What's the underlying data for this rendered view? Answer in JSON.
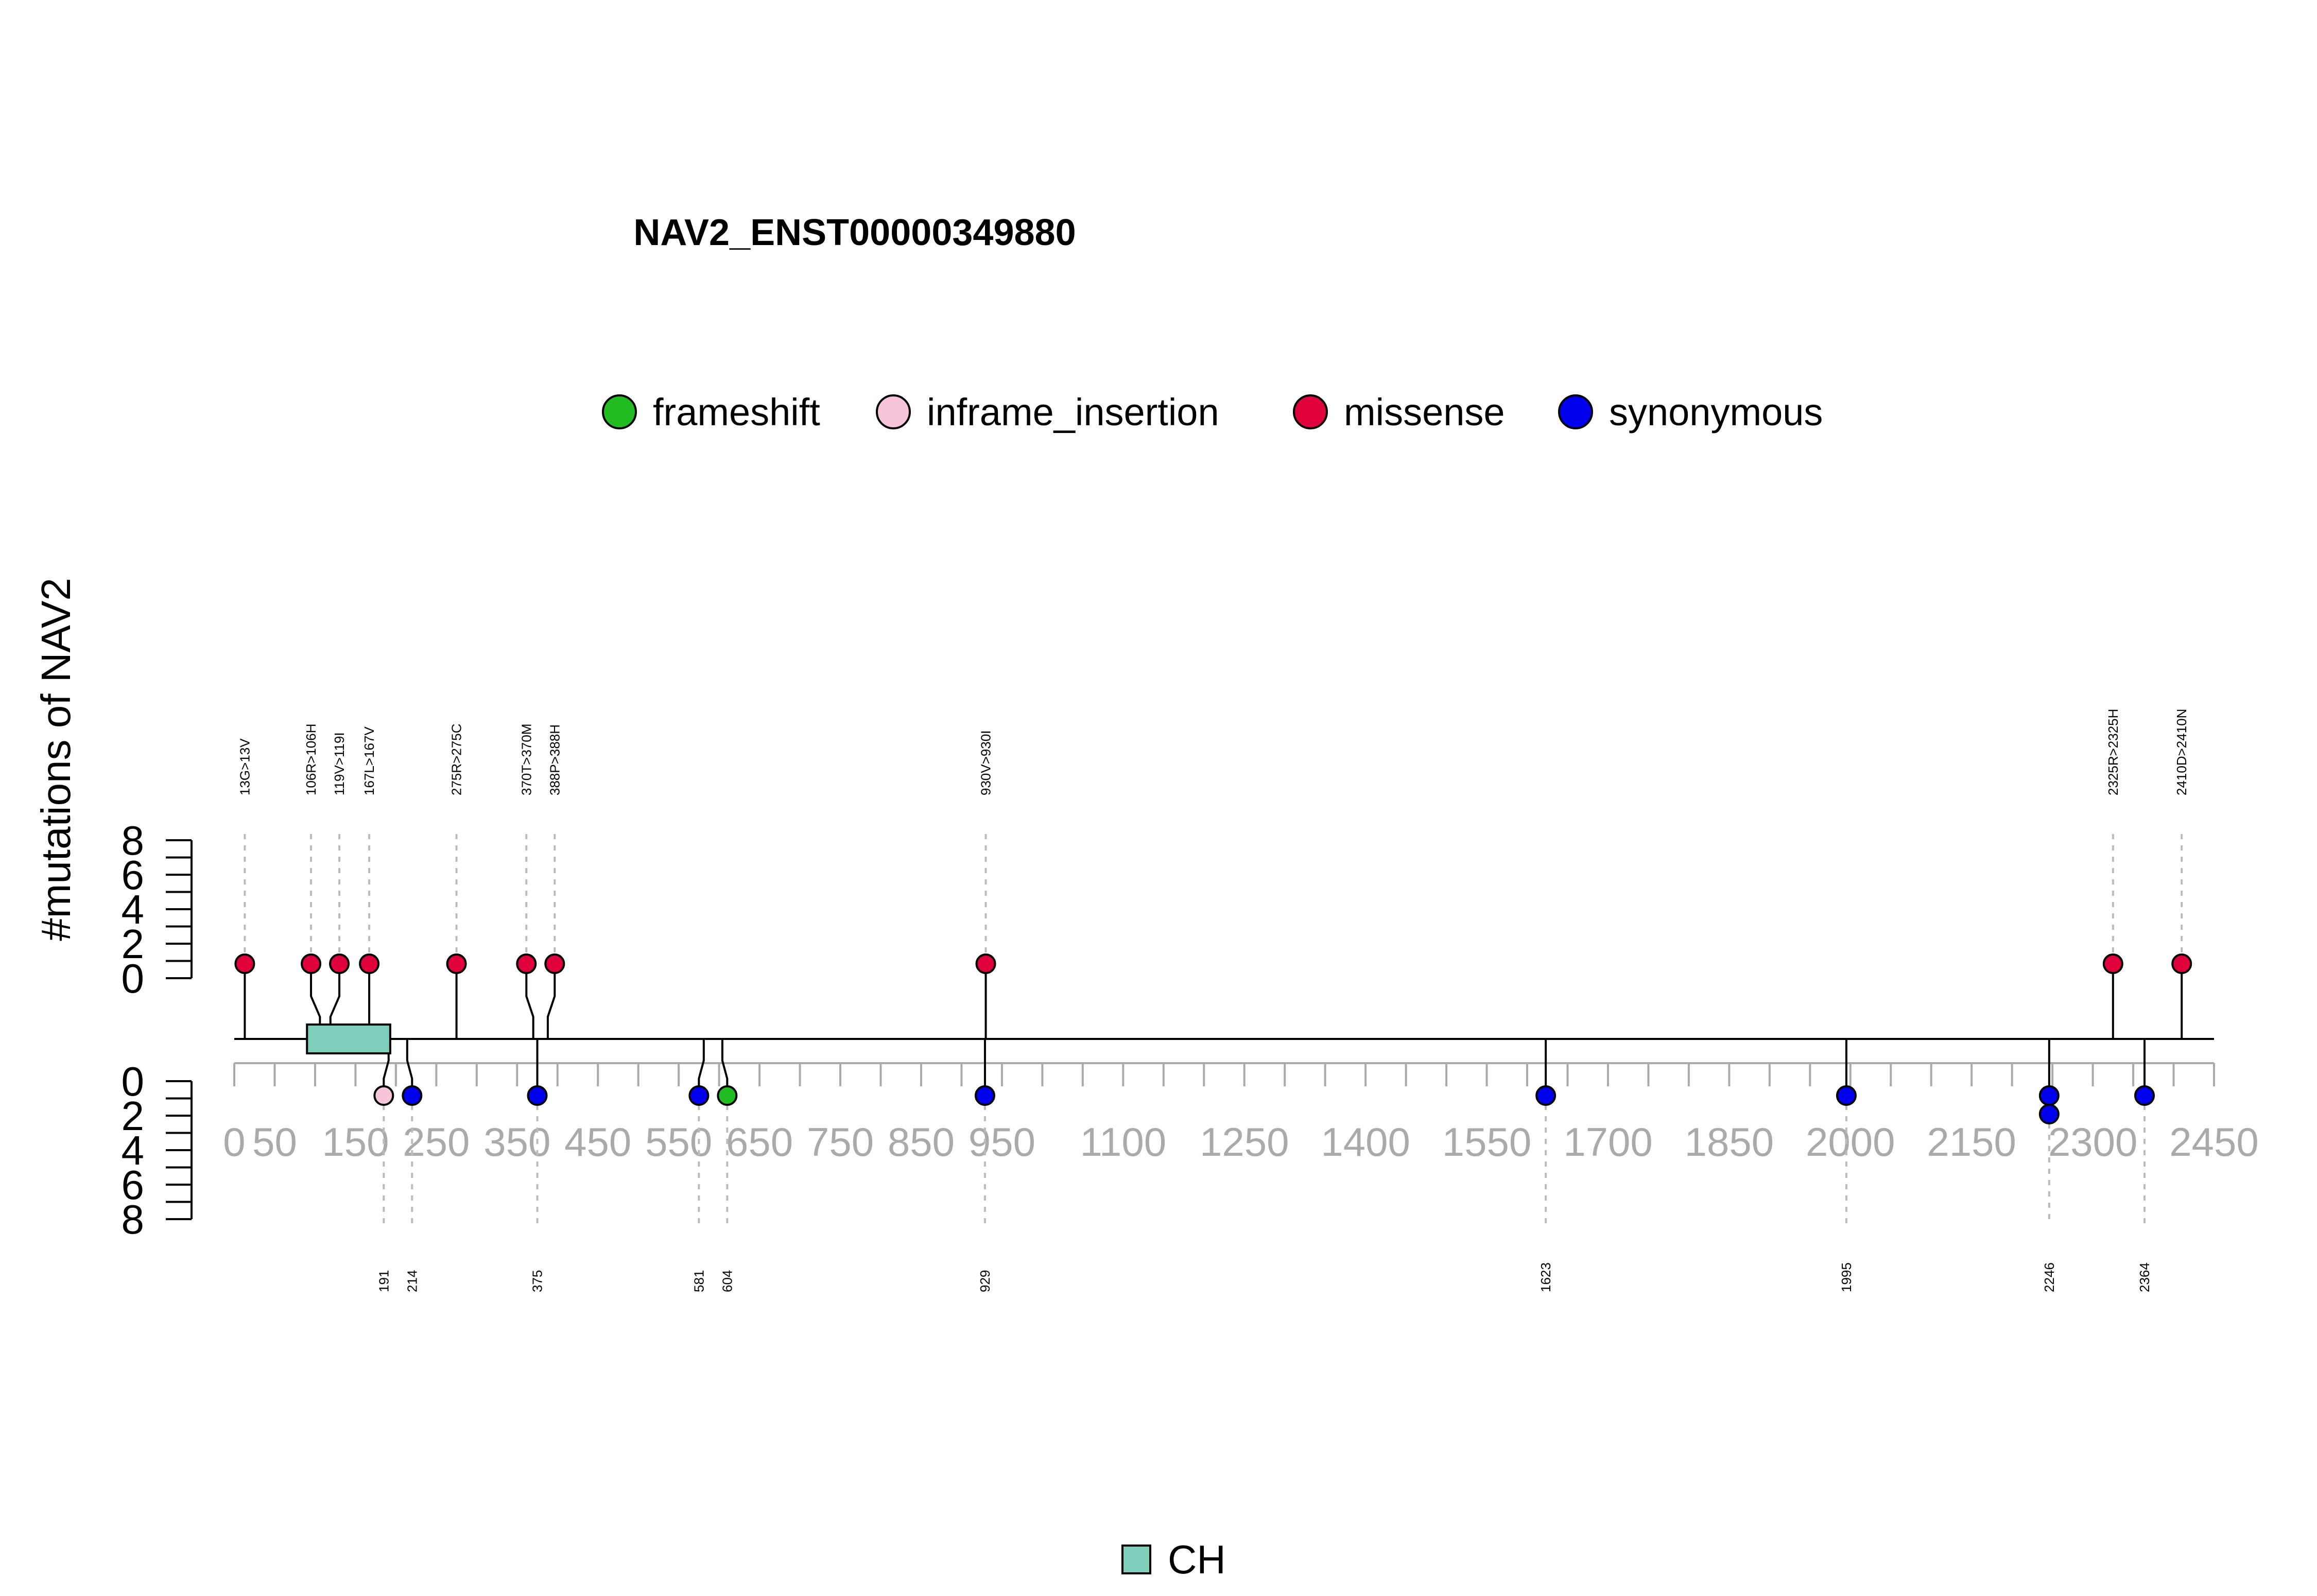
{
  "chart_data": {
    "type": "lollipop",
    "title": "NAV2_ENST00000349880",
    "ylabel": "#mutations of NAV2",
    "xlim": [
      0,
      2450
    ],
    "ylim_top": [
      0,
      8
    ],
    "ylim_bottom": [
      0,
      8
    ],
    "y_ticks": [
      "0",
      "2",
      "4",
      "6",
      "8"
    ],
    "x_ticks": [
      0,
      50,
      150,
      250,
      350,
      450,
      550,
      650,
      750,
      850,
      950,
      1100,
      1250,
      1400,
      1550,
      1700,
      1850,
      2000,
      2150,
      2300,
      2450
    ],
    "x_tick_labels": [
      "0",
      "50",
      "150",
      "250",
      "350",
      "450",
      "550",
      "650",
      "750",
      "850",
      "950",
      "1100",
      "1250",
      "1400",
      "1550",
      "1700",
      "1850",
      "2000",
      "2150",
      "2300",
      "2450"
    ],
    "legend": {
      "placement": "top-center",
      "entries": [
        {
          "label": "frameshift",
          "color": "#22bb22"
        },
        {
          "label": "inframe_insertion",
          "color": "#f7c4dc"
        },
        {
          "label": "missense",
          "color": "#e0003c"
        },
        {
          "label": "synonymous",
          "color": "#0000ee"
        }
      ]
    },
    "domains": [
      {
        "name": "CH",
        "start": 90,
        "end": 193,
        "color": "#7fcdbb"
      }
    ],
    "domain_legend": {
      "label": "CH",
      "color": "#7fcdbb"
    },
    "top_mutations": [
      {
        "pos": 13,
        "label": "13G>13V",
        "type": "missense",
        "count": 1
      },
      {
        "pos": 106,
        "label": "106R>106H",
        "type": "missense",
        "count": 1
      },
      {
        "pos": 119,
        "label": "119V>119I",
        "type": "missense",
        "count": 1
      },
      {
        "pos": 167,
        "label": "167L>167V",
        "type": "missense",
        "count": 1
      },
      {
        "pos": 275,
        "label": "275R>275C",
        "type": "missense",
        "count": 1
      },
      {
        "pos": 370,
        "label": "370T>370M",
        "type": "missense",
        "count": 1
      },
      {
        "pos": 388,
        "label": "388P>388H",
        "type": "missense",
        "count": 1
      },
      {
        "pos": 930,
        "label": "930V>930I",
        "type": "missense",
        "count": 1
      },
      {
        "pos": 2325,
        "label": "2325R>2325H",
        "type": "missense",
        "count": 1
      },
      {
        "pos": 2410,
        "label": "2410D>2410N",
        "type": "missense",
        "count": 1
      }
    ],
    "bottom_mutations": [
      {
        "pos": 191,
        "label": "191",
        "type": "inframe_insertion",
        "count": 1
      },
      {
        "pos": 214,
        "label": "214",
        "type": "synonymous",
        "count": 1
      },
      {
        "pos": 375,
        "label": "375",
        "type": "synonymous",
        "count": 1
      },
      {
        "pos": 581,
        "label": "581",
        "type": "synonymous",
        "count": 1
      },
      {
        "pos": 604,
        "label": "604",
        "type": "frameshift",
        "count": 1
      },
      {
        "pos": 929,
        "label": "929",
        "type": "synonymous",
        "count": 1
      },
      {
        "pos": 1623,
        "label": "1623",
        "type": "synonymous",
        "count": 1
      },
      {
        "pos": 1995,
        "label": "1995",
        "type": "synonymous",
        "count": 1
      },
      {
        "pos": 2246,
        "label": "2246",
        "type": "synonymous",
        "count": 2
      },
      {
        "pos": 2364,
        "label": "2364",
        "type": "synonymous",
        "count": 1
      }
    ]
  }
}
